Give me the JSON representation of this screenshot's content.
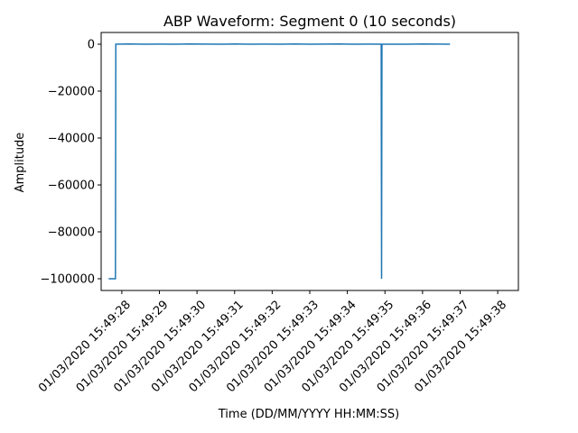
{
  "chart_data": {
    "type": "line",
    "title": "ABP Waveform: Segment 0 (10 seconds)",
    "xlabel": "Time (DD/MM/YYYY HH:MM:SS)",
    "ylabel": "Amplitude",
    "grid": false,
    "legend": "none",
    "line_color": "#1f77b4",
    "xlim": [
      "01/03/2020 15:49:27.45",
      "01/03/2020 15:49:38.55"
    ],
    "ylim": [
      -105000,
      5000
    ],
    "x_ticks": [
      "01/03/2020 15:49:28",
      "01/03/2020 15:49:29",
      "01/03/2020 15:49:30",
      "01/03/2020 15:49:31",
      "01/03/2020 15:49:32",
      "01/03/2020 15:49:33",
      "01/03/2020 15:49:34",
      "01/03/2020 15:49:35",
      "01/03/2020 15:49:36",
      "01/03/2020 15:49:37",
      "01/03/2020 15:49:38"
    ],
    "y_ticks": [
      0,
      -20000,
      -40000,
      -60000,
      -80000,
      -100000
    ],
    "y_tick_labels": [
      "0",
      "−20000",
      "−40000",
      "−60000",
      "−80000",
      "−100000"
    ],
    "series": [
      {
        "x": [
          "01/03/2020 15:49:27.65",
          "01/03/2020 15:49:27.83",
          "01/03/2020 15:49:27.84",
          "01/03/2020 15:49:28.20",
          "01/03/2020 15:49:28.60",
          "01/03/2020 15:49:29.00",
          "01/03/2020 15:49:29.40",
          "01/03/2020 15:49:29.80",
          "01/03/2020 15:49:30.20",
          "01/03/2020 15:49:30.60",
          "01/03/2020 15:49:31.00",
          "01/03/2020 15:49:31.40",
          "01/03/2020 15:49:31.80",
          "01/03/2020 15:49:32.20",
          "01/03/2020 15:49:32.60",
          "01/03/2020 15:49:33.00",
          "01/03/2020 15:49:33.40",
          "01/03/2020 15:49:33.80",
          "01/03/2020 15:49:34.20",
          "01/03/2020 15:49:34.60",
          "01/03/2020 15:49:34.90",
          "01/03/2020 15:49:34.91",
          "01/03/2020 15:49:34.92",
          "01/03/2020 15:49:35.20",
          "01/03/2020 15:49:35.60",
          "01/03/2020 15:49:36.00",
          "01/03/2020 15:49:36.40",
          "01/03/2020 15:49:36.73"
        ],
        "y": [
          -100000,
          -100000,
          0,
          100,
          0,
          50,
          0,
          100,
          50,
          0,
          100,
          0,
          50,
          0,
          100,
          0,
          50,
          100,
          0,
          50,
          0,
          -100000,
          0,
          0,
          0,
          100,
          50,
          0
        ]
      }
    ]
  }
}
